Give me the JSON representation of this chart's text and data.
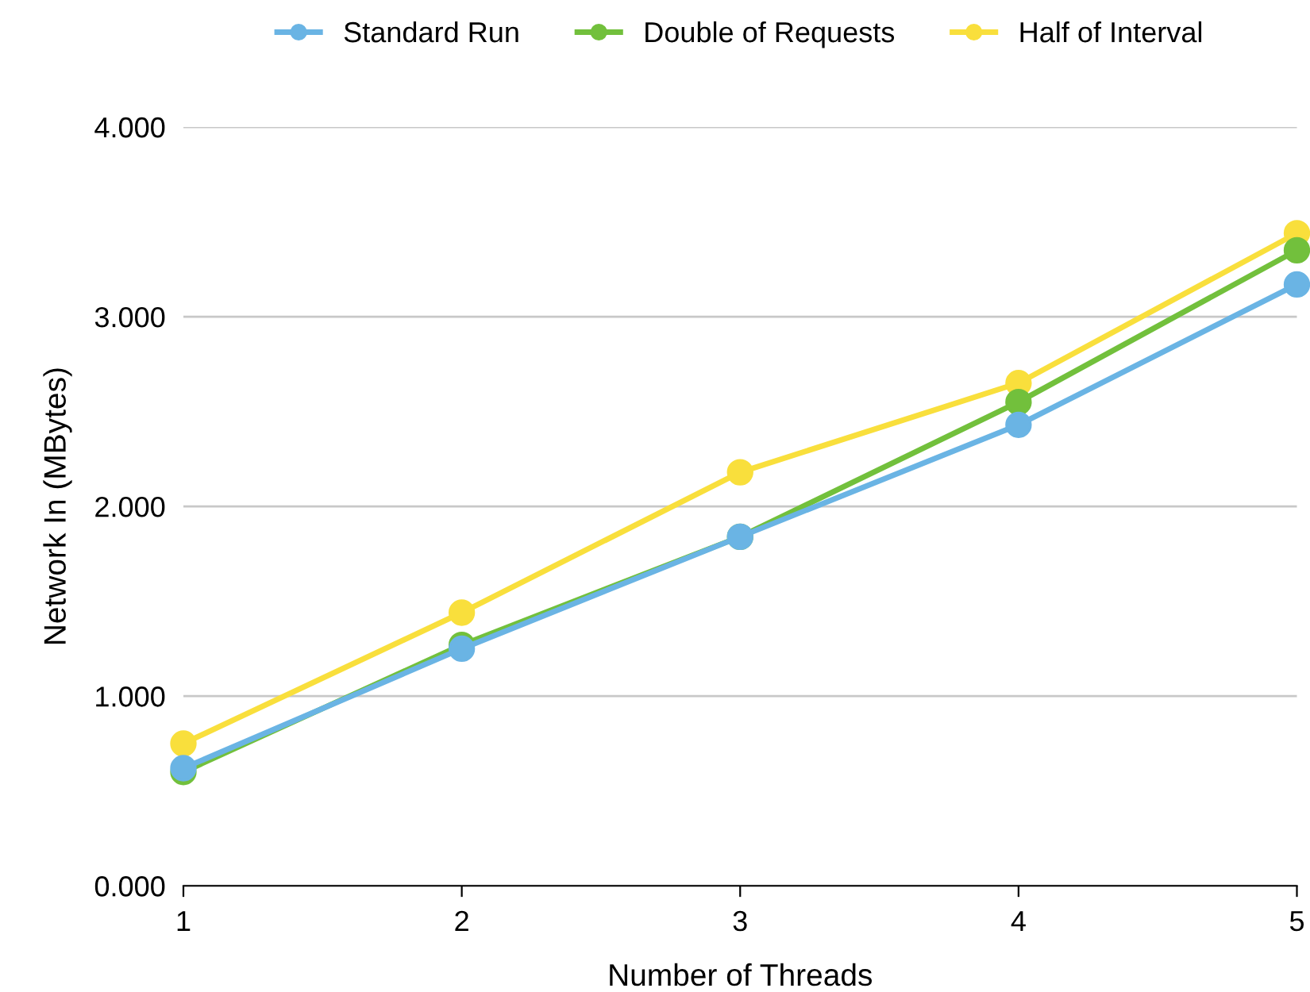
{
  "chart_data": {
    "type": "line",
    "xlabel": "Number of Threads",
    "ylabel": "Network In (MBytes)",
    "x": [
      1,
      2,
      3,
      4,
      5
    ],
    "series": [
      {
        "name": "Standard Run",
        "color": "#6ab4e4",
        "values": [
          0.62,
          1.25,
          1.84,
          2.43,
          3.17
        ]
      },
      {
        "name": "Double of Requests",
        "color": "#72c03c",
        "values": [
          0.6,
          1.27,
          1.84,
          2.55,
          3.35
        ]
      },
      {
        "name": "Half of Interval",
        "color": "#f9df3c",
        "values": [
          0.75,
          1.44,
          2.18,
          2.65,
          3.44
        ]
      }
    ],
    "xlim": [
      1,
      5
    ],
    "xticks": [
      1,
      2,
      3,
      4,
      5
    ],
    "ylim": [
      0,
      4
    ],
    "yticks": [
      {
        "value": 0,
        "label": "0.000"
      },
      {
        "value": 1,
        "label": "1.000"
      },
      {
        "value": 2,
        "label": "2.000"
      },
      {
        "value": 3,
        "label": "3.000"
      },
      {
        "value": 4,
        "label": "4.000"
      }
    ],
    "grid": "y",
    "legend": "top",
    "marker": "circle",
    "line_style": "solid"
  }
}
